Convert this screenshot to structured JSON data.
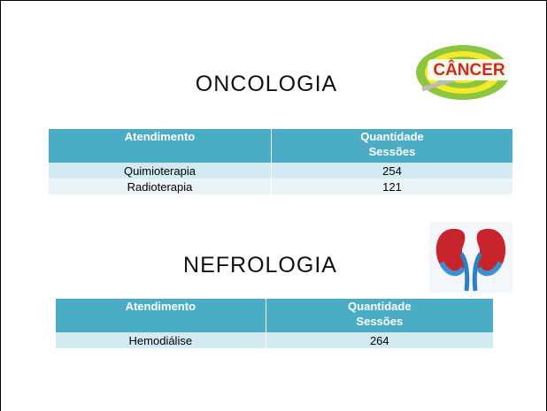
{
  "sections": [
    {
      "title": "ONCOLOGIA",
      "icon_label": "CÂNCER",
      "table": {
        "headers": [
          "Atendimento",
          "Quantidade\nSessões"
        ],
        "rows": [
          [
            "Quimioterapia",
            "254"
          ],
          [
            "Radioterapia",
            "121"
          ]
        ]
      }
    },
    {
      "title": "NEFROLOGIA",
      "table": {
        "headers": [
          "Atendimento",
          "Quantidade\nSessões"
        ],
        "rows": [
          [
            "Hemodiálise",
            "264"
          ]
        ]
      }
    }
  ]
}
